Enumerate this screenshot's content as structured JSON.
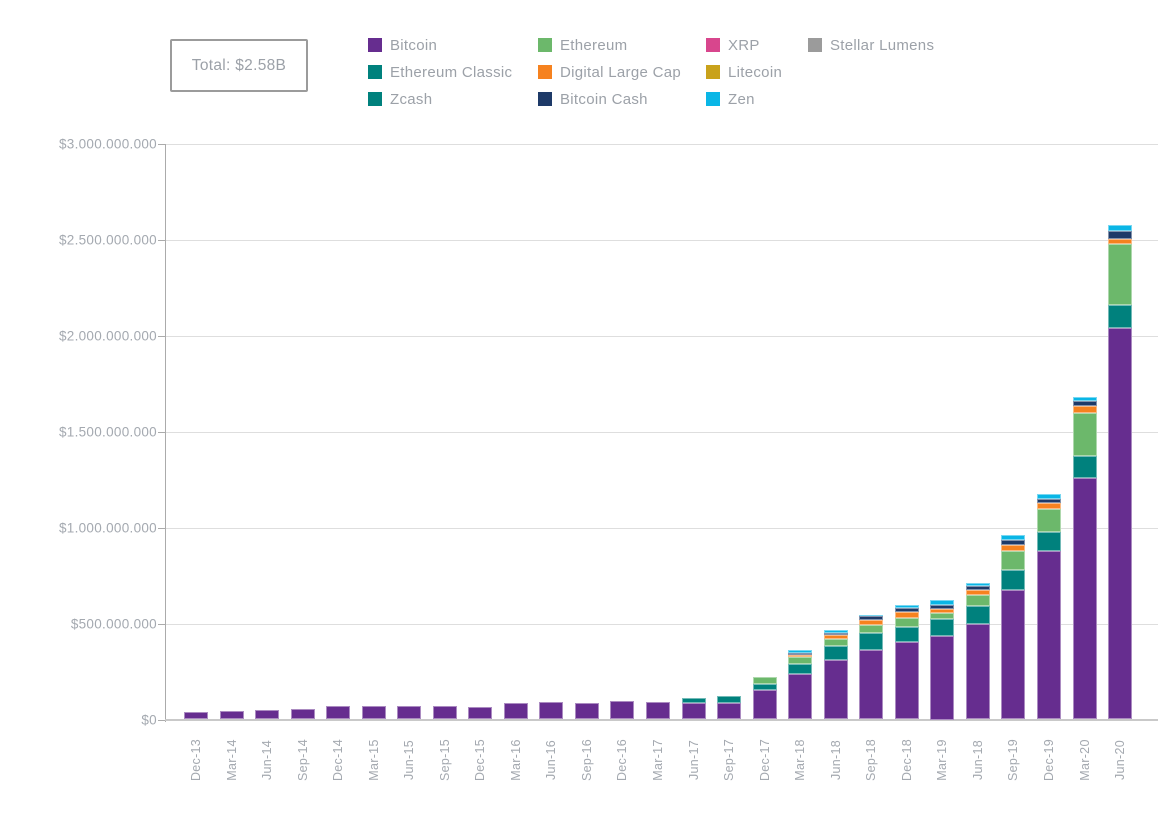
{
  "total_box": {
    "label": "Total: $2.58B"
  },
  "legend": {
    "columns": [
      [
        "Bitcoin",
        "Ethereum Classic",
        "Zcash"
      ],
      [
        "Ethereum",
        "Digital Large Cap",
        "Bitcoin Cash"
      ],
      [
        "XRP",
        "Litecoin",
        "Zen"
      ],
      [
        "Stellar Lumens"
      ]
    ]
  },
  "chart_data": {
    "type": "bar",
    "stacked": true,
    "title": "",
    "unit": "USD",
    "values_in": "millions",
    "grid": true,
    "legend_position": "top",
    "ylim": [
      0,
      3000
    ],
    "ytick_step": 500,
    "ytick_labels": [
      "$0",
      "$500.000.000",
      "$1.000.000.000",
      "$1.500.000.000",
      "$2.000.000.000",
      "$2.500.000.000",
      "$3.000.000.000"
    ],
    "categories": [
      "Dec-13",
      "Mar-14",
      "Jun-14",
      "Sep-14",
      "Dec-14",
      "Mar-15",
      "Jun-15",
      "Sep-15",
      "Dec-15",
      "Mar-16",
      "Jun-16",
      "Sep-16",
      "Dec-16",
      "Mar-17",
      "Jun-17",
      "Sep-17",
      "Dec-17",
      "Mar-18",
      "Jun-18",
      "Sep-18",
      "Dec-18",
      "Mar-19",
      "Jun-18",
      "Sep-19",
      "Dec-19",
      "Mar-20",
      "Jun-20"
    ],
    "series": [
      {
        "name": "Bitcoin",
        "color": "#662d8f",
        "values": [
          38,
          43,
          52,
          54,
          69,
          69,
          68,
          68,
          66,
          87,
          90,
          87,
          95,
          90,
          85,
          87,
          156,
          238,
          311,
          360,
          403,
          434,
          498,
          672,
          875,
          1260,
          2040
        ]
      },
      {
        "name": "Ethereum Classic",
        "color": "#00817d",
        "values": [
          0,
          0,
          0,
          0,
          0,
          0,
          0,
          0,
          0,
          0,
          0,
          0,
          0,
          0,
          28,
          33,
          30,
          52,
          74,
          90,
          78,
          90,
          95,
          108,
          104,
          115,
          117
        ]
      },
      {
        "name": "Ethereum",
        "color": "#6cb86b",
        "values": [
          0,
          0,
          0,
          0,
          0,
          0,
          0,
          0,
          0,
          0,
          0,
          0,
          0,
          0,
          0,
          0,
          35,
          35,
          35,
          44,
          47,
          31,
          56,
          97,
          120,
          220,
          320
        ]
      },
      {
        "name": "Digital Large Cap",
        "color": "#f6821f",
        "values": [
          0,
          0,
          0,
          0,
          0,
          0,
          0,
          0,
          0,
          0,
          0,
          0,
          0,
          0,
          0,
          0,
          0,
          12,
          21,
          26,
          31,
          21,
          24,
          30,
          31,
          40,
          26
        ]
      },
      {
        "name": "Bitcoin Cash",
        "color": "#1e3a68",
        "values": [
          0,
          0,
          0,
          0,
          0,
          0,
          0,
          0,
          0,
          0,
          0,
          0,
          0,
          0,
          0,
          0,
          0,
          12,
          12,
          17,
          23,
          21,
          24,
          30,
          21,
          25,
          40
        ]
      },
      {
        "name": "Zen",
        "color": "#0ab6e6",
        "values": [
          0,
          0,
          0,
          0,
          0,
          0,
          0,
          0,
          0,
          0,
          0,
          0,
          0,
          0,
          0,
          0,
          0,
          14,
          14,
          8,
          12,
          28,
          14,
          22,
          26,
          22,
          35
        ]
      },
      {
        "name": "XRP",
        "color": "#d8468d",
        "values": [
          0,
          0,
          0,
          0,
          0,
          0,
          0,
          0,
          0,
          0,
          0,
          0,
          0,
          0,
          0,
          0,
          0,
          0,
          0,
          0,
          0,
          0,
          0,
          0,
          0,
          0,
          0
        ]
      },
      {
        "name": "Litecoin",
        "color": "#c9a21b",
        "values": [
          0,
          0,
          0,
          0,
          0,
          0,
          0,
          0,
          0,
          0,
          0,
          0,
          0,
          0,
          0,
          0,
          0,
          0,
          0,
          0,
          0,
          0,
          0,
          0,
          0,
          0,
          0
        ]
      },
      {
        "name": "Stellar Lumens",
        "color": "#9b9b9b",
        "values": [
          0,
          0,
          0,
          0,
          0,
          0,
          0,
          0,
          0,
          0,
          0,
          0,
          0,
          0,
          0,
          0,
          0,
          0,
          0,
          0,
          0,
          0,
          0,
          0,
          0,
          0,
          0
        ]
      },
      {
        "name": "Zcash",
        "color": "#00817d",
        "values": [
          0,
          0,
          0,
          0,
          0,
          0,
          0,
          0,
          0,
          0,
          0,
          0,
          0,
          0,
          0,
          0,
          0,
          0,
          0,
          0,
          0,
          0,
          0,
          0,
          0,
          0,
          0
        ]
      }
    ]
  }
}
